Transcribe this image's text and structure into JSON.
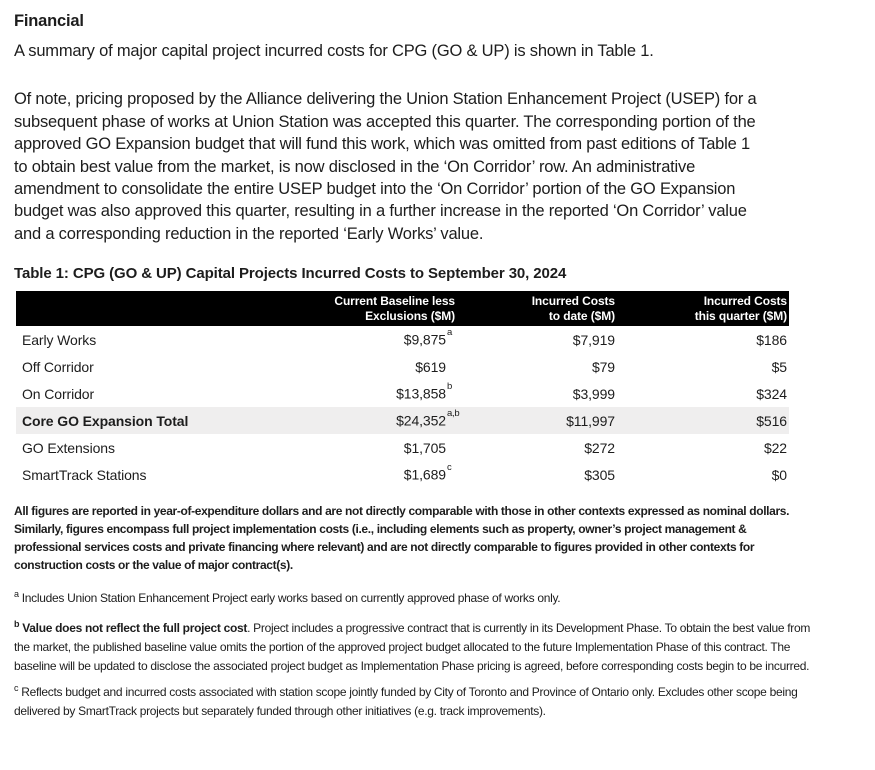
{
  "page": {
    "heading": "Financial",
    "paragraph1": "A summary of major capital project incurred costs for CPG (GO & UP) is shown in Table 1.",
    "paragraph2": "Of note, pricing proposed by the Alliance delivering the Union Station Enhancement Project (USEP) for a subsequent phase of works at Union Station was accepted this quarter. The corresponding portion of the approved GO Expansion budget that will fund this work, which was omitted from past editions of Table 1 to obtain best value from the market, is now disclosed in the ‘On Corridor’ row. An administrative amendment to consolidate the entire USEP budget into the ‘On Corridor’ portion of the GO Expansion budget was also approved this quarter, resulting in a further increase in the reported ‘On Corridor’ value and a corresponding reduction in the reported ‘Early Works’ value."
  },
  "table": {
    "title": "Table 1: CPG (GO & UP) Capital Projects Incurred Costs to September 30, 2024",
    "columns": [
      {
        "line1": "Current Baseline less",
        "line2": "Exclusions ($M)"
      },
      {
        "line1": "Incurred Costs",
        "line2": "to date ($M)"
      },
      {
        "line1": "Incurred Costs",
        "line2": "this quarter ($M)"
      }
    ],
    "rows": [
      {
        "label": "Early Works",
        "baseline": "$9,875",
        "baseline_sup": "a",
        "to_date": "$7,919",
        "quarter": "$186"
      },
      {
        "label": "Off Corridor",
        "baseline": "$619",
        "to_date": "$79",
        "quarter": "$5"
      },
      {
        "label": "On Corridor",
        "baseline": "$13,858",
        "baseline_sup": "b",
        "to_date": "$3,999",
        "quarter": "$324"
      },
      {
        "label": "Core GO Expansion Total",
        "baseline": "$24,352",
        "baseline_sup": "a,b",
        "to_date": "$11,997",
        "quarter": "$516"
      },
      {
        "label": "GO Extensions",
        "baseline": "$1,705",
        "to_date": "$272",
        "quarter": "$22"
      },
      {
        "label": "SmartTrack Stations",
        "baseline": "$1,689",
        "baseline_sup": "c",
        "to_date": "$305",
        "quarter": "$0"
      }
    ]
  },
  "notes": {
    "disclaimer": "All figures are reported in year-of-expenditure dollars and are not directly comparable with those in other contexts expressed as nominal dollars. Similarly, figures encompass full project implementation costs (i.e., including elements such as property, owner’s project management & professional services costs and private financing where relevant) and are not directly comparable to figures provided in other contexts for construction costs or the value of major contract(s).",
    "footnote_a": {
      "marker": "a",
      "text": "Includes Union Station Enhancement Project early works based on currently approved phase of works only."
    },
    "footnote_b": {
      "marker": "b",
      "bold": "Value does not reflect the full project cost",
      "text": ". Project includes a progressive contract that is currently in its Development Phase. To obtain the best value from the market, the published baseline value omits the portion of the approved project budget allocated to the future Implementation Phase of this contract. The baseline will be updated to disclose the associated project budget as Implementation Phase pricing is agreed, before corresponding costs begin to be incurred."
    },
    "footnote_c": {
      "marker": "c",
      "text": "Reflects budget and incurred costs associated with station scope jointly funded by City of Toronto and Province of Ontario only. Excludes other scope being delivered by SmartTrack projects but separately funded through other initiatives (e.g. track improvements)."
    }
  },
  "colors": {
    "header_bg": "#000000",
    "header_text": "#ffffff",
    "total_row_bg": "#efeeee",
    "text": "#1d1d1d"
  }
}
